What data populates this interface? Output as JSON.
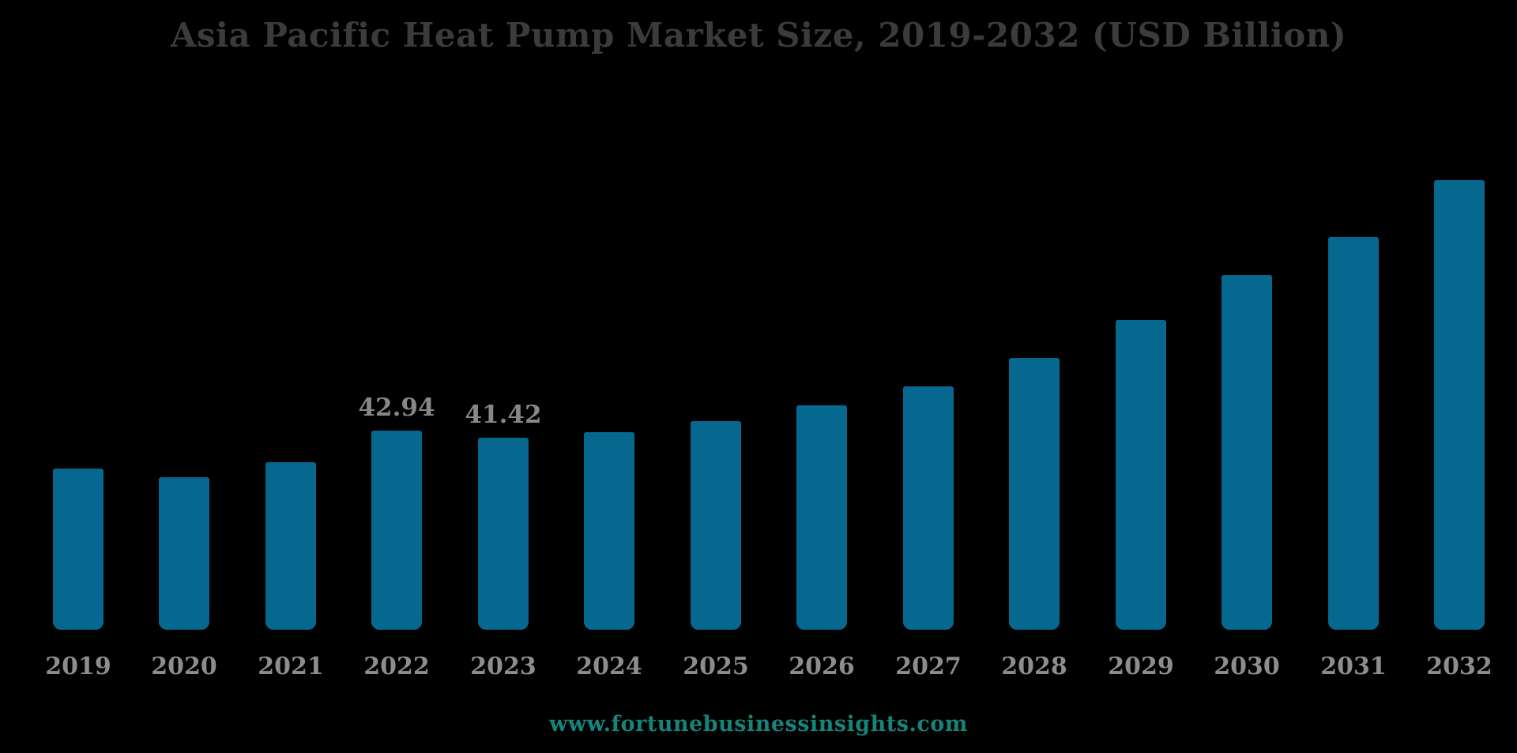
{
  "chart_data": {
    "type": "bar",
    "title": "Asia Pacific Heat Pump Market Size, 2019-2032 (USD Billion)",
    "unit": "USD Billion",
    "categories": [
      "2019",
      "2020",
      "2021",
      "2022",
      "2023",
      "2024",
      "2025",
      "2026",
      "2027",
      "2028",
      "2029",
      "2030",
      "2031",
      "2032"
    ],
    "values": [
      34.8,
      32.9,
      36.1,
      42.94,
      41.42,
      42.6,
      45.0,
      48.4,
      52.5,
      58.6,
      66.8,
      76.5,
      84.7,
      97.04
    ],
    "data_labels": {
      "2022": "42.94",
      "2023": "41.42"
    },
    "xlabel": "",
    "ylabel": "",
    "ylim": [
      0,
      100
    ],
    "grid": false,
    "legend": false,
    "bar_color": "#06688E",
    "background_color": "#000000",
    "title_color": "#3B3B3B",
    "axis_label_color": "#8D8D8D",
    "data_label_color": "#878787"
  },
  "footer": {
    "watermark": "www.fortunebusinessinsights.com",
    "watermark_color": "#15847A"
  }
}
